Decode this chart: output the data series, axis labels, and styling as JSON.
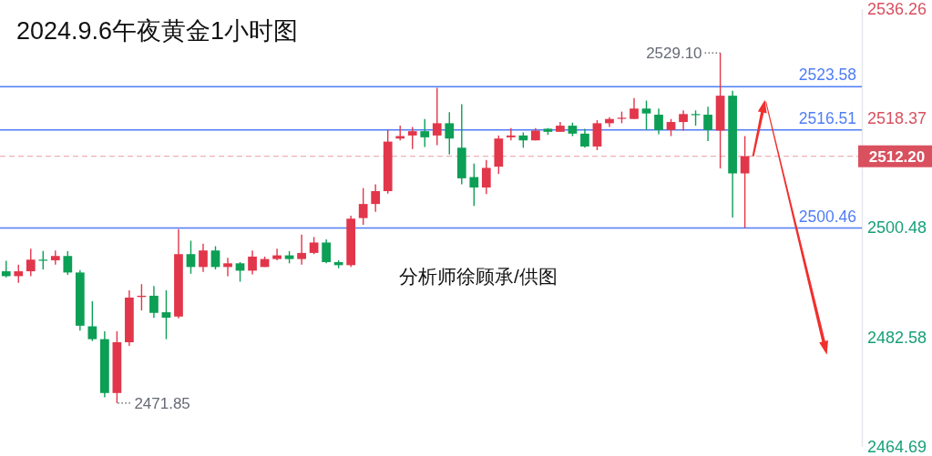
{
  "chart_data": {
    "type": "candlestick",
    "title": "2024.9.6午夜黄金1小时图",
    "categories": [
      null,
      null,
      null,
      null,
      null,
      null,
      null,
      null,
      null,
      null,
      null,
      null,
      null,
      null,
      null,
      null,
      null,
      null,
      null,
      null,
      null,
      null,
      null,
      null,
      null,
      null,
      null,
      null,
      null,
      null,
      null,
      null,
      null,
      null,
      null,
      null,
      null,
      null,
      null,
      null,
      null,
      null,
      null,
      null,
      null,
      null,
      null,
      null,
      null,
      null,
      null,
      null,
      null,
      null,
      null,
      null,
      null,
      null,
      null,
      null,
      null,
      null,
      null,
      null,
      null,
      null,
      null,
      null,
      null,
      null
    ],
    "ohlc": [
      [
        2493.4,
        2495.1,
        2492.4,
        2492.6
      ],
      [
        2492.6,
        2494.5,
        2491.5,
        2493.4
      ],
      [
        2493.4,
        2497.1,
        2492.6,
        2495.3
      ],
      [
        2495.3,
        2496.7,
        2493.7,
        2495.2
      ],
      [
        2495.2,
        2496.8,
        2494.5,
        2495.9
      ],
      [
        2495.9,
        2496.7,
        2492.8,
        2493.2
      ],
      [
        2493.2,
        2493.6,
        2483.7,
        2484.5
      ],
      [
        2484.4,
        2488.5,
        2482.0,
        2482.3
      ],
      [
        2482.3,
        2483.6,
        2472.8,
        2473.5
      ],
      [
        2473.5,
        2483.6,
        2471.85,
        2481.8
      ],
      [
        2481.8,
        2490.3,
        2481.2,
        2489.1
      ],
      [
        2489.2,
        2491.3,
        2487.0,
        2489.4
      ],
      [
        2489.4,
        2491.0,
        2485.8,
        2486.6
      ],
      [
        2486.7,
        2490.3,
        2482.3,
        2485.8
      ],
      [
        2486.0,
        2500.3,
        2485.7,
        2496.2
      ],
      [
        2496.2,
        2498.4,
        2493.0,
        2494.1
      ],
      [
        2494.1,
        2497.9,
        2493.3,
        2496.8
      ],
      [
        2496.8,
        2497.5,
        2493.7,
        2494.1
      ],
      [
        2494.1,
        2495.6,
        2492.6,
        2494.7
      ],
      [
        2494.7,
        2494.9,
        2491.7,
        2493.5
      ],
      [
        2493.5,
        2496.8,
        2492.9,
        2495.8
      ],
      [
        2494.1,
        2495.8,
        2494.1,
        2495.4
      ],
      [
        2495.4,
        2497.1,
        2495.2,
        2496.0
      ],
      [
        2496.0,
        2496.7,
        2494.7,
        2495.4
      ],
      [
        2495.4,
        2499.4,
        2494.5,
        2496.4
      ],
      [
        2496.4,
        2499.0,
        2496.2,
        2498.1
      ],
      [
        2498.1,
        2498.6,
        2494.7,
        2494.9
      ],
      [
        2494.9,
        2495.2,
        2493.9,
        2494.4
      ],
      [
        2494.4,
        2502.5,
        2494.1,
        2502.0
      ],
      [
        2502.1,
        2507.0,
        2501.0,
        2504.4
      ],
      [
        2504.4,
        2507.6,
        2503.1,
        2506.5
      ],
      [
        2506.5,
        2516.5,
        2506.1,
        2514.6
      ],
      [
        2515.1,
        2517.2,
        2514.8,
        2515.5
      ],
      [
        2515.6,
        2517.0,
        2513.4,
        2516.3
      ],
      [
        2516.3,
        2518.3,
        2513.7,
        2515.3
      ],
      [
        2515.6,
        2523.4,
        2514.0,
        2517.6
      ],
      [
        2517.6,
        2519.4,
        2512.5,
        2515.1
      ],
      [
        2513.6,
        2520.7,
        2507.6,
        2508.6
      ],
      [
        2508.8,
        2511.0,
        2504.1,
        2507.1
      ],
      [
        2507.1,
        2511.6,
        2506.0,
        2510.3
      ],
      [
        2510.5,
        2515.6,
        2509.3,
        2515.1
      ],
      [
        2515.3,
        2516.8,
        2514.8,
        2515.6
      ],
      [
        2515.6,
        2516.1,
        2513.6,
        2514.8
      ],
      [
        2514.8,
        2516.8,
        2514.8,
        2516.4
      ],
      [
        2516.7,
        2516.8,
        2515.7,
        2516.2
      ],
      [
        2516.2,
        2517.8,
        2516.2,
        2517.2
      ],
      [
        2517.2,
        2517.7,
        2515.5,
        2515.9
      ],
      [
        2515.9,
        2516.7,
        2513.6,
        2513.8
      ],
      [
        2513.8,
        2518.1,
        2513.2,
        2517.6
      ],
      [
        2517.6,
        2518.6,
        2517.0,
        2518.3
      ],
      [
        2518.4,
        2519.5,
        2517.6,
        2518.5
      ],
      [
        2518.3,
        2521.7,
        2518.3,
        2520.0
      ],
      [
        2520.0,
        2521.3,
        2516.5,
        2519.2
      ],
      [
        2519.0,
        2520.0,
        2515.8,
        2516.5
      ],
      [
        2516.5,
        2518.3,
        2515.5,
        2517.8
      ],
      [
        2517.8,
        2519.7,
        2516.4,
        2519.1
      ],
      [
        2519.1,
        2519.7,
        2517.2,
        2519.0
      ],
      [
        2519.0,
        2520.3,
        2514.7,
        2516.5
      ],
      [
        2516.4,
        2529.1,
        2510.2,
        2522.1
      ],
      [
        2522.1,
        2522.9,
        2502.2,
        2509.4
      ],
      [
        2509.4,
        2515.5,
        2500.5,
        2512.2
      ],
      null,
      null,
      null,
      null,
      null,
      null,
      null,
      null,
      null
    ],
    "colors": [
      "#0c9f55",
      "#e2364a",
      "#e2364a",
      "#0c9f55",
      "#e2364a",
      "#0c9f55",
      "#0c9f55",
      "#0c9f55",
      "#0c9f55",
      "#e2364a",
      "#e2364a",
      "#e2364a",
      "#0c9f55",
      "#0c9f55",
      "#e2364a",
      "#0c9f55",
      "#e2364a",
      "#0c9f55",
      "#e2364a",
      "#0c9f55",
      "#e2364a",
      "#e2364a",
      "#e2364a",
      "#0c9f55",
      "#e2364a",
      "#e2364a",
      "#0c9f55",
      "#0c9f55",
      "#e2364a",
      "#e2364a",
      "#e2364a",
      "#e2364a",
      "#e2364a",
      "#e2364a",
      "#0c9f55",
      "#e2364a",
      "#0c9f55",
      "#0c9f55",
      "#0c9f55",
      "#e2364a",
      "#e2364a",
      "#e2364a",
      "#0c9f55",
      "#e2364a",
      "#0c9f55",
      "#e2364a",
      "#0c9f55",
      "#0c9f55",
      "#e2364a",
      "#e2364a",
      "#e2364a",
      "#e2364a",
      "#0c9f55",
      "#0c9f55",
      "#e2364a",
      "#e2364a",
      "#0c9f55",
      "#0c9f55",
      "#e2364a",
      "#0c9f55",
      "#e2364a",
      null,
      null,
      null,
      null,
      null,
      null,
      null,
      null,
      null
    ],
    "ylim": [
      2464.69,
      2536.26
    ],
    "yticks": [
      2536.26,
      2518.37,
      2500.48,
      2482.58,
      2464.69
    ],
    "ref_lines": [
      {
        "axis": "y",
        "value": 2523.58,
        "label": "2523.58",
        "color": "#4f7df5"
      },
      {
        "axis": "y",
        "value": 2516.51,
        "label": "2516.51",
        "color": "#4f7df5"
      },
      {
        "axis": "y",
        "value": 2500.46,
        "label": "2500.46",
        "color": "#4f7df5"
      },
      {
        "axis": "y",
        "value": 2512.2,
        "label": "2512.20",
        "color": "#d9505f",
        "line_style": "dashed"
      }
    ],
    "annotations": [
      "2529.10",
      "2471.85",
      "分析师徐顾承/供图"
    ],
    "tick_labels": "y"
  }
}
